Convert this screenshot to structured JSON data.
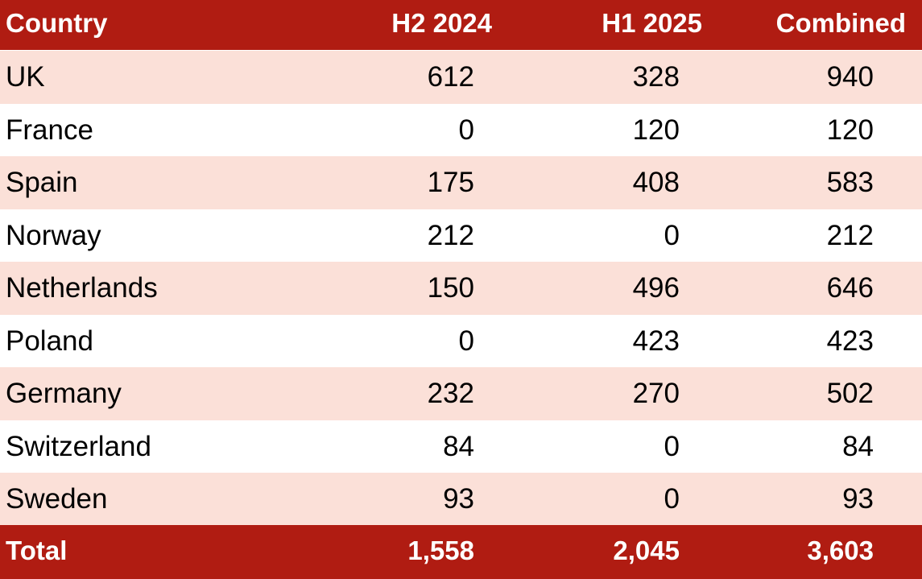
{
  "table": {
    "headers": [
      "Country",
      "H2 2024",
      "H1 2025",
      "Combined"
    ],
    "rows": [
      [
        "UK",
        "612",
        "328",
        "940"
      ],
      [
        "France",
        "0",
        "120",
        "120"
      ],
      [
        "Spain",
        "175",
        "408",
        "583"
      ],
      [
        "Norway",
        "212",
        "0",
        "212"
      ],
      [
        "Netherlands",
        "150",
        "496",
        "646"
      ],
      [
        "Poland",
        "0",
        "423",
        "423"
      ],
      [
        "Germany",
        "232",
        "270",
        "502"
      ],
      [
        "Switzerland",
        "84",
        "0",
        "84"
      ],
      [
        "Sweden",
        "93",
        "0",
        "93"
      ]
    ],
    "total": [
      "Total",
      "1,558",
      "2,045",
      "3,603"
    ]
  },
  "colors": {
    "header_bg": "#b01c12",
    "band_bg": "#fbe0d8",
    "plain_bg": "#ffffff"
  }
}
